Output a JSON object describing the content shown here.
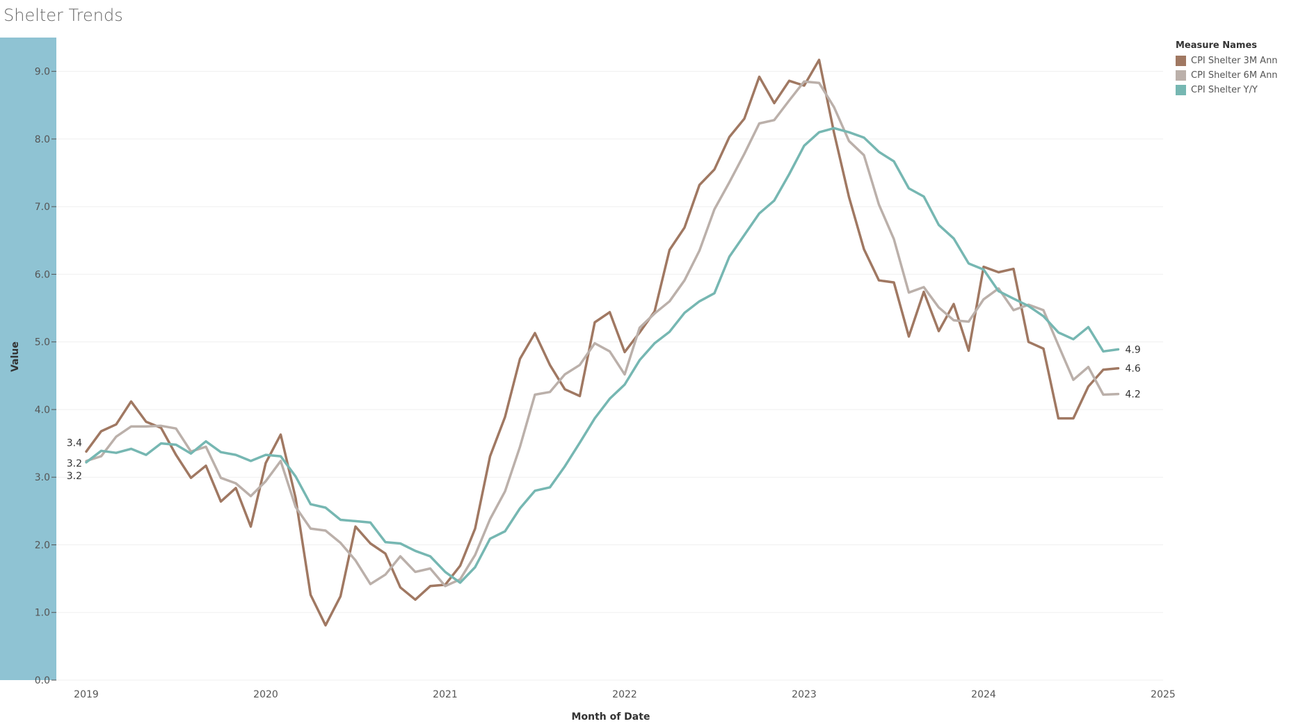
{
  "title": "Shelter Trends",
  "legend": {
    "title": "Measure Names",
    "placement": "top-right"
  },
  "chart_data": {
    "type": "line",
    "title": "Shelter Trends",
    "xlabel": "Month of Date",
    "ylabel": "Value",
    "ylim": [
      0,
      9.5
    ],
    "xlim": [
      "2018-11",
      "2025-01"
    ],
    "yticks": [
      "0.0",
      "1.0",
      "2.0",
      "3.0",
      "4.0",
      "5.0",
      "6.0",
      "7.0",
      "8.0",
      "9.0"
    ],
    "xticks": [
      "2019",
      "2020",
      "2021",
      "2022",
      "2023",
      "2024",
      "2025"
    ],
    "grid": "horizontal",
    "x_start": "2019-01",
    "x_end": "2024-10",
    "series": [
      {
        "name": "CPI Shelter 3M Ann",
        "color": "#a07862",
        "end_label": "4.6",
        "start_label": "3.4",
        "values": [
          3.38,
          3.68,
          3.78,
          4.12,
          3.82,
          3.73,
          3.33,
          2.99,
          3.17,
          2.64,
          2.84,
          2.27,
          3.21,
          3.63,
          2.69,
          1.26,
          0.81,
          1.24,
          2.27,
          2.02,
          1.87,
          1.37,
          1.19,
          1.39,
          1.41,
          1.69,
          2.24,
          3.31,
          3.89,
          4.75,
          5.13,
          4.66,
          4.3,
          4.2,
          5.29,
          5.44,
          4.85,
          5.14,
          5.45,
          6.36,
          6.69,
          7.32,
          7.55,
          8.03,
          8.3,
          8.92,
          8.53,
          8.86,
          8.79,
          9.17,
          8.09,
          7.14,
          6.37,
          5.91,
          5.88,
          5.08,
          5.74,
          5.16,
          5.56,
          4.87,
          6.11,
          6.03,
          6.08,
          5.0,
          4.9,
          3.87,
          3.87,
          4.34,
          4.59,
          4.61
        ]
      },
      {
        "name": "CPI Shelter 6M Ann",
        "color": "#bbb0aa",
        "end_label": "4.2",
        "start_label": "3.2",
        "values": [
          3.24,
          3.31,
          3.6,
          3.75,
          3.75,
          3.76,
          3.72,
          3.38,
          3.45,
          2.99,
          2.91,
          2.72,
          2.94,
          3.24,
          2.56,
          2.24,
          2.21,
          2.03,
          1.77,
          1.42,
          1.56,
          1.83,
          1.6,
          1.65,
          1.39,
          1.49,
          1.85,
          2.38,
          2.79,
          3.45,
          4.22,
          4.26,
          4.52,
          4.66,
          4.98,
          4.86,
          4.52,
          5.21,
          5.42,
          5.6,
          5.91,
          6.35,
          6.96,
          7.36,
          7.78,
          8.23,
          8.28,
          8.57,
          8.85,
          8.83,
          8.47,
          7.97,
          7.76,
          7.03,
          6.52,
          5.73,
          5.81,
          5.51,
          5.32,
          5.3,
          5.63,
          5.79,
          5.47,
          5.55,
          5.47,
          4.95,
          4.44,
          4.63,
          4.22,
          4.23
        ]
      },
      {
        "name": "CPI Shelter Y/Y",
        "color": "#76b7b2",
        "end_label": "4.9",
        "start_label": "3.2",
        "values": [
          3.22,
          3.39,
          3.36,
          3.42,
          3.33,
          3.5,
          3.48,
          3.35,
          3.53,
          3.37,
          3.33,
          3.24,
          3.33,
          3.31,
          3.01,
          2.6,
          2.55,
          2.37,
          2.35,
          2.33,
          2.04,
          2.02,
          1.91,
          1.83,
          1.6,
          1.44,
          1.67,
          2.09,
          2.2,
          2.54,
          2.8,
          2.85,
          3.16,
          3.51,
          3.87,
          4.16,
          4.37,
          4.73,
          4.98,
          5.15,
          5.43,
          5.6,
          5.72,
          6.26,
          6.58,
          6.9,
          7.09,
          7.48,
          7.9,
          8.1,
          8.16,
          8.1,
          8.02,
          7.81,
          7.67,
          7.27,
          7.15,
          6.73,
          6.53,
          6.16,
          6.07,
          5.75,
          5.64,
          5.53,
          5.38,
          5.14,
          5.04,
          5.22,
          4.86,
          4.89
        ]
      }
    ]
  }
}
